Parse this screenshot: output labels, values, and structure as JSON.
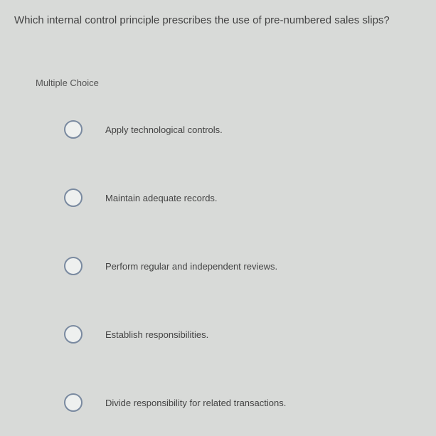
{
  "question": {
    "text": "Which internal control principle prescribes the use of pre-numbered sales slips?"
  },
  "section": {
    "label": "Multiple Choice"
  },
  "options": [
    {
      "label": "Apply technological controls."
    },
    {
      "label": "Maintain adequate records."
    },
    {
      "label": "Perform regular and independent reviews."
    },
    {
      "label": "Establish responsibilities."
    },
    {
      "label": "Divide responsibility for related transactions."
    }
  ],
  "colors": {
    "background": "#d8dad8",
    "text": "#3a3a3a",
    "radio_border": "#7a8aa0",
    "radio_fill": "#eef0ef"
  }
}
